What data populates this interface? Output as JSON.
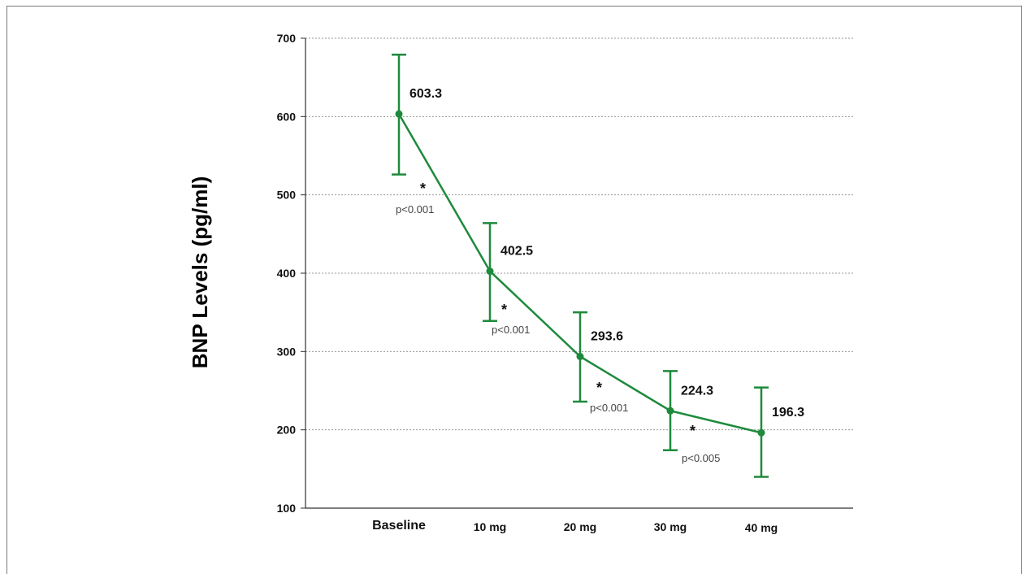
{
  "chart_data": {
    "type": "line",
    "title": "",
    "xlabel": "",
    "ylabel": "BNP Levels (pg/ml)",
    "categories": [
      "Baseline",
      "10 mg",
      "20 mg",
      "30 mg",
      "40 mg"
    ],
    "ylim": [
      100,
      700
    ],
    "yticks": [
      100,
      200,
      300,
      400,
      500,
      600,
      700
    ],
    "grid": true,
    "series": [
      {
        "values": [
          603.3,
          402.5,
          293.6,
          224.3,
          196.3
        ],
        "labels": [
          "603.3",
          "402.5",
          "293.6",
          "224.3",
          "196.3"
        ],
        "error_low": [
          526,
          339,
          236,
          174,
          140
        ],
        "error_high": [
          679,
          464,
          350,
          275,
          254
        ],
        "color": "#1e8a3c"
      }
    ],
    "annotations": [
      {
        "between": [
          0,
          1
        ],
        "star": "*",
        "text": "p<0.001"
      },
      {
        "between": [
          1,
          2
        ],
        "star": "*",
        "text": "p<0.001"
      },
      {
        "between": [
          2,
          3
        ],
        "star": "*",
        "text": "p<0.001"
      },
      {
        "between": [
          3,
          4
        ],
        "star": "*",
        "text": "p<0.005"
      }
    ]
  }
}
